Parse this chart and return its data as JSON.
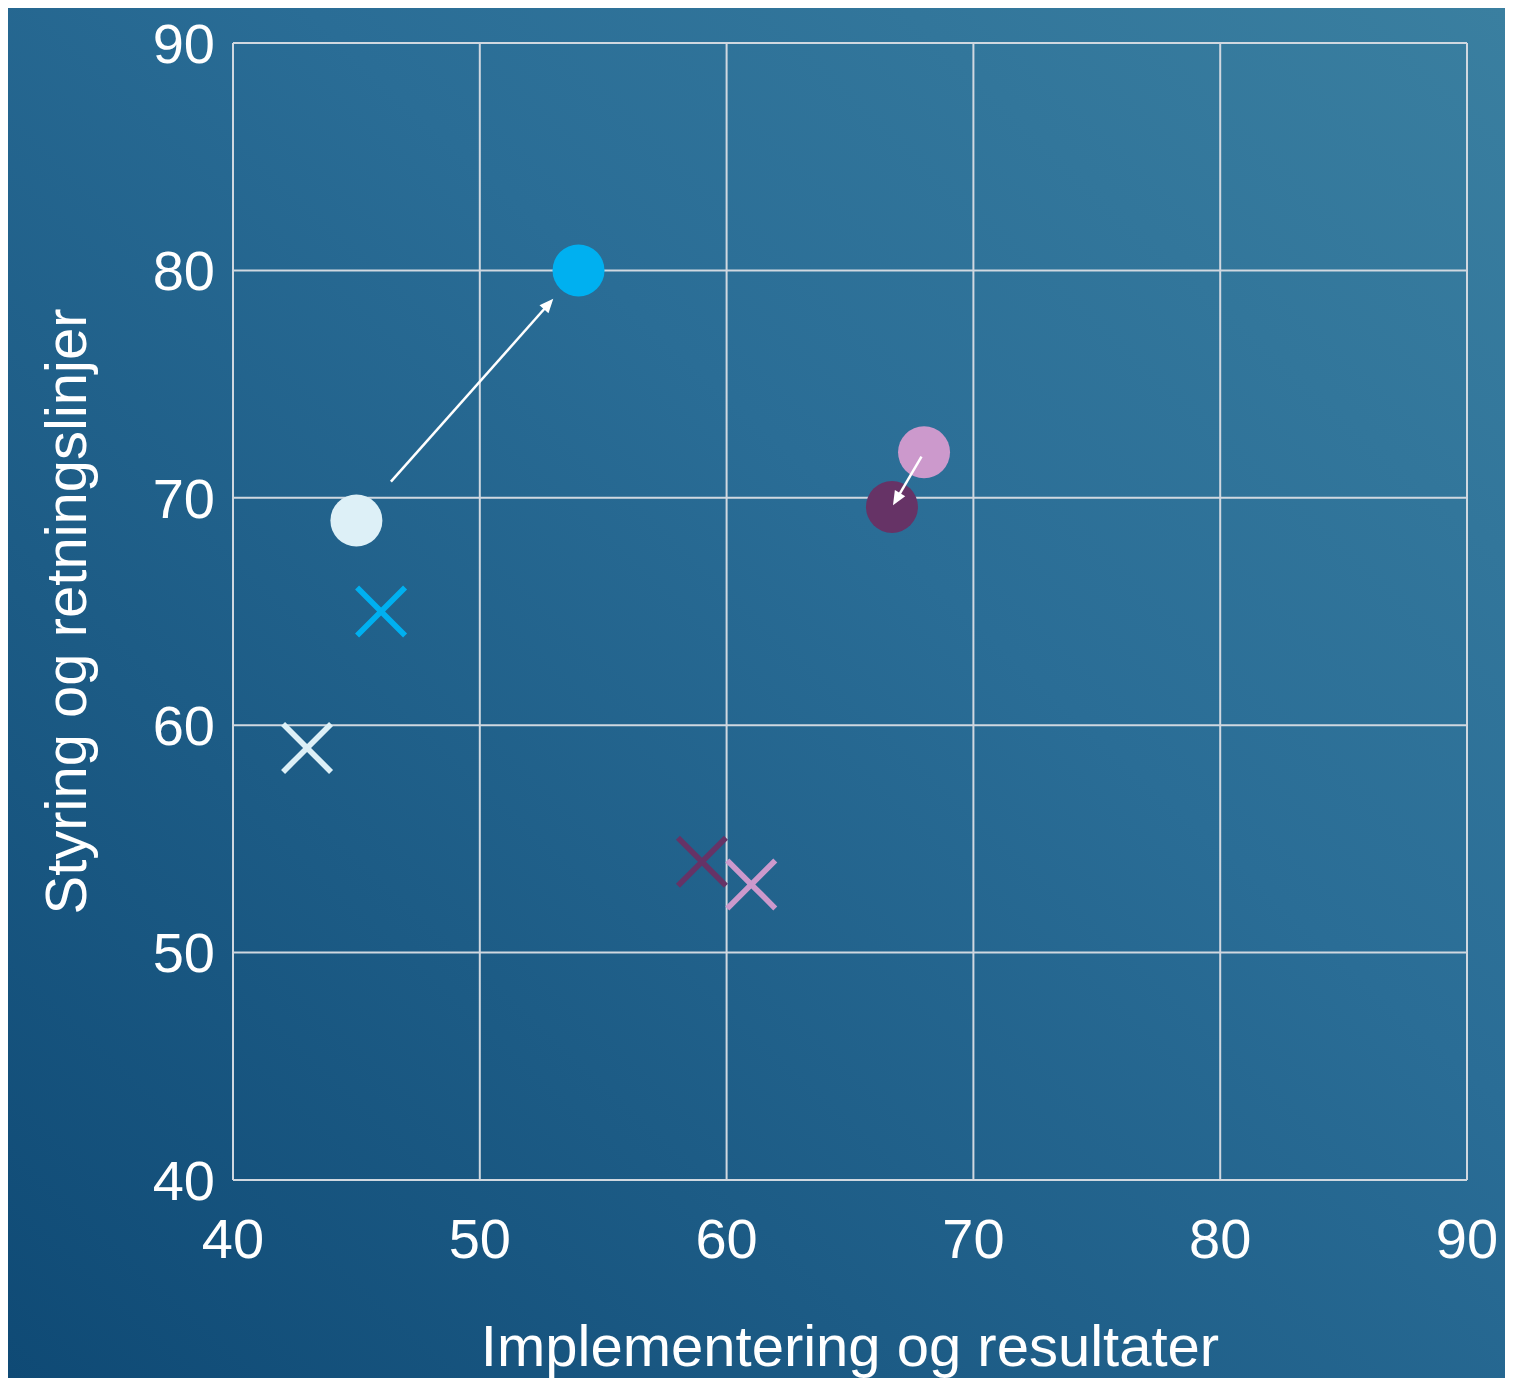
{
  "chart_data": {
    "type": "scatter",
    "xlabel": "Implementering og resultater",
    "ylabel": "Styring og retningslinjer",
    "xlim": [
      40,
      90
    ],
    "xticks": [
      40,
      50,
      60,
      70,
      80,
      90
    ],
    "ylim": [
      40,
      90
    ],
    "yticks": [
      40,
      50,
      60,
      70,
      80,
      90
    ],
    "grid": true,
    "legend": false,
    "series": [
      {
        "color": "#ddf0f7",
        "marker": "circle",
        "x": [
          45
        ],
        "values": [
          69
        ]
      },
      {
        "color": "#00b0f0",
        "marker": "circle",
        "x": [
          54
        ],
        "values": [
          80
        ]
      },
      {
        "color": "#cc99cc",
        "marker": "circle",
        "x": [
          68
        ],
        "values": [
          72
        ]
      },
      {
        "color": "#663366",
        "marker": "circle",
        "x": [
          66.7
        ],
        "values": [
          69.6
        ]
      },
      {
        "color": "#00b0f0",
        "marker": "cross",
        "x": [
          46
        ],
        "values": [
          65
        ]
      },
      {
        "color": "#ddf0f7",
        "marker": "cross",
        "x": [
          43
        ],
        "values": [
          59
        ]
      },
      {
        "color": "#663366",
        "marker": "cross",
        "x": [
          59
        ],
        "values": [
          54
        ]
      },
      {
        "color": "#cc99cc",
        "marker": "cross",
        "x": [
          61
        ],
        "values": [
          53
        ]
      }
    ]
  }
}
